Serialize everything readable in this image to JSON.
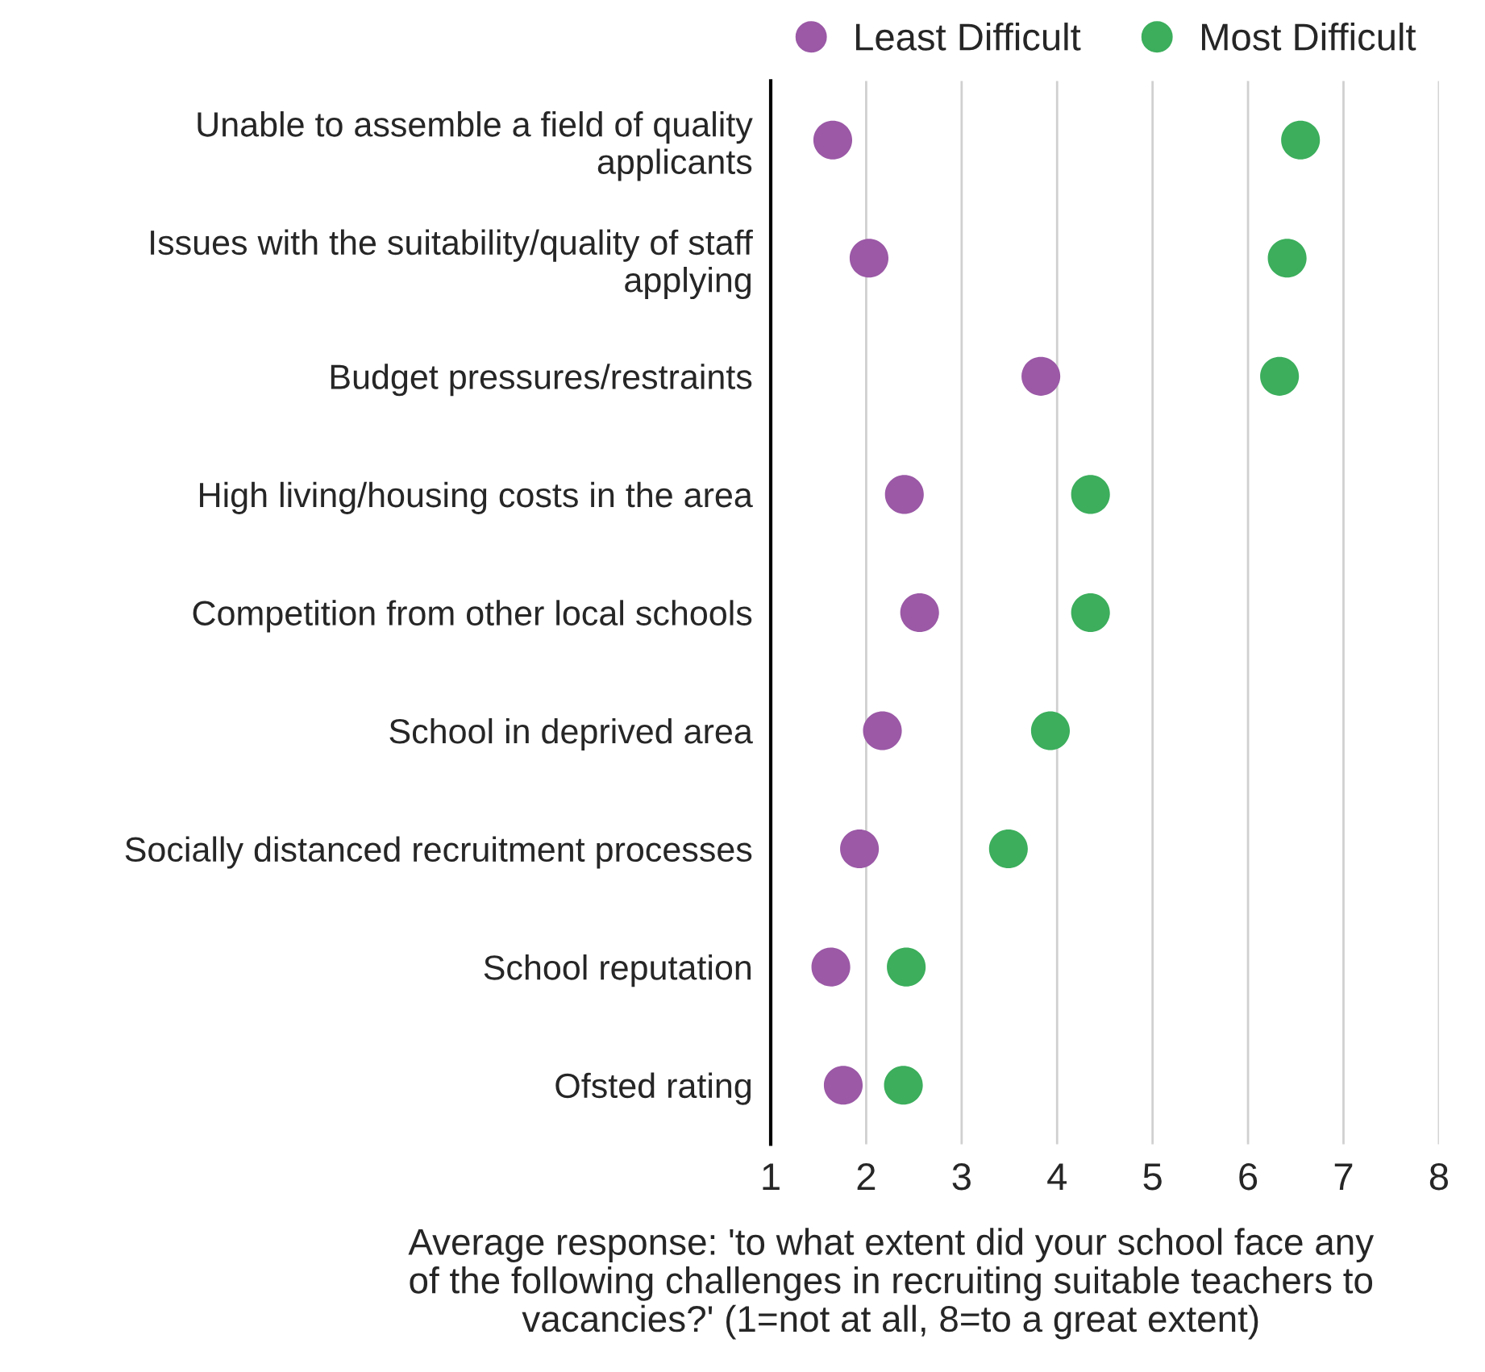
{
  "chart_data": {
    "type": "scatter",
    "categories": [
      "Unable to assemble a field of quality\napplicants",
      "Issues with the suitability/quality of staff\napplying",
      "Budget pressures/restraints",
      "High living/housing costs in the area",
      "Competition from other local schools",
      "School in deprived area",
      "Socially distanced recruitment processes",
      "School reputation",
      "Ofsted rating"
    ],
    "orientation": "horizontal",
    "series": [
      {
        "name": "Least Difficult",
        "color": "#9b59a6",
        "values": [
          1.65,
          2.03,
          3.83,
          2.4,
          2.56,
          2.17,
          1.93,
          1.63,
          1.76
        ]
      },
      {
        "name": "Most Difficult",
        "color": "#3cae5c",
        "values": [
          6.55,
          6.41,
          6.33,
          4.35,
          4.35,
          3.93,
          3.49,
          2.42,
          2.39
        ]
      }
    ],
    "xlim": [
      1,
      8
    ],
    "xticks": [
      1,
      2,
      3,
      4,
      5,
      6,
      7,
      8
    ],
    "xlabel": "Average response: 'to what extent did your school face any\nof the following challenges in recruiting suitable teachers to\nvacancies?' (1=not at all, 8=to a great extent)",
    "grid": "x",
    "legend": "top right",
    "marker": "circle"
  }
}
